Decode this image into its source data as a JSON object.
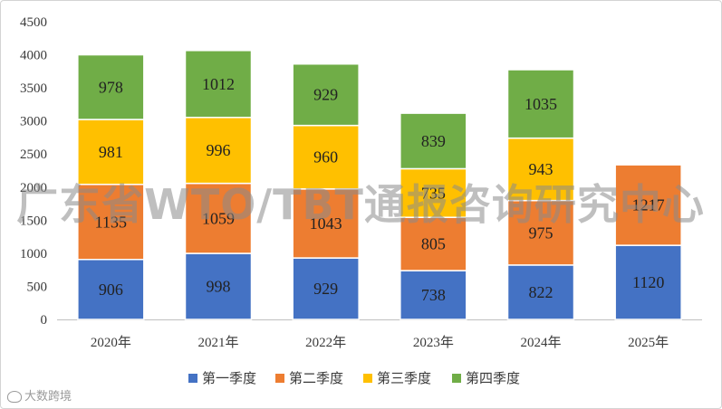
{
  "chart_data": {
    "type": "bar",
    "stacked": true,
    "categories": [
      "2020年",
      "2021年",
      "2022年",
      "2023年",
      "2024年",
      "2025年"
    ],
    "series": [
      {
        "name": "第一季度",
        "color": "#4472c4",
        "values": [
          906,
          998,
          929,
          738,
          822,
          1120
        ]
      },
      {
        "name": "第二季度",
        "color": "#ed7d31",
        "values": [
          1135,
          1059,
          1043,
          805,
          975,
          1217
        ]
      },
      {
        "name": "第三季度",
        "color": "#ffc000",
        "values": [
          981,
          996,
          960,
          735,
          943,
          null
        ]
      },
      {
        "name": "第四季度",
        "color": "#70ad47",
        "values": [
          978,
          1012,
          929,
          839,
          1035,
          null
        ]
      }
    ],
    "yticks": [
      "0",
      "500",
      "1000",
      "1500",
      "2000",
      "2500",
      "3000",
      "3500",
      "4000",
      "4500"
    ],
    "ylim": [
      0,
      4500
    ],
    "grid": false,
    "legend_position": "bottom"
  },
  "watermark": "广东省WTO/TBT通报咨询研究中心",
  "corner_text": "大数跨境"
}
